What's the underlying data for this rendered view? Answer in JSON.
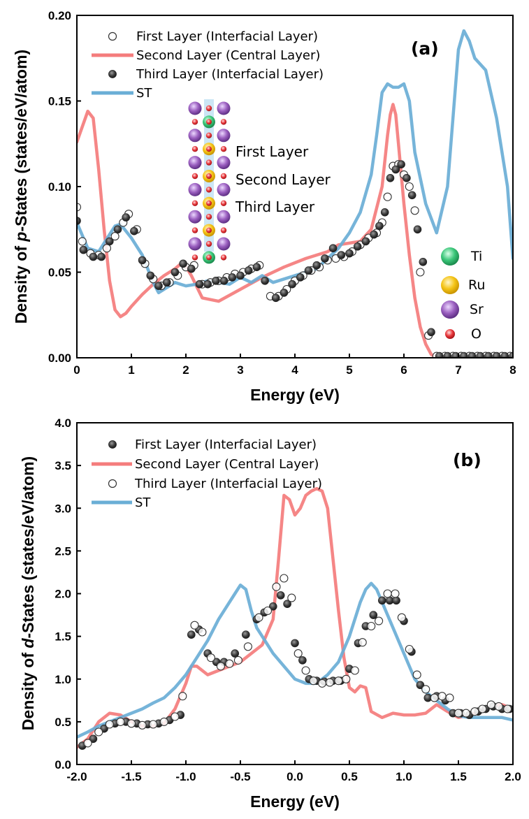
{
  "colors": {
    "red": "#f47c7c",
    "blue": "#6aaed6",
    "dark_marker": "#3c3c3c",
    "ti": "#3cc77a",
    "ru": "#f5c518",
    "sr": "#9b5fc0",
    "o": "#e8383c"
  },
  "chart_data": [
    {
      "type": "line",
      "panel_label": "(a)",
      "xlabel": "Energy (eV)",
      "ylabel_prefix": "Density of ",
      "ylabel_italic": "p",
      "ylabel_suffix": "-States (states/eV/atom)",
      "xlim": [
        0,
        8
      ],
      "ylim": [
        0,
        0.2
      ],
      "xticks": [
        0,
        1,
        2,
        3,
        4,
        5,
        6,
        7,
        8
      ],
      "xtick_labels": [
        "0",
        "1",
        "2",
        "3",
        "4",
        "5",
        "6",
        "7",
        "8"
      ],
      "yticks": [
        0,
        0.05,
        0.1,
        0.15,
        0.2
      ],
      "ytick_labels": [
        "0.00",
        "0.05",
        "0.10",
        "0.15",
        "0.20"
      ],
      "legend": [
        {
          "label": "First      Layer (Interfacial Layer)",
          "style": "open-circle"
        },
        {
          "label": "Second Layer (Central     Layer)",
          "style": "red-line"
        },
        {
          "label": "Third     Layer (Interfacial Layer)",
          "style": "dark-circle"
        },
        {
          "label": "ST",
          "style": "blue-line"
        }
      ],
      "series": [
        {
          "name": "Second Layer (Central Layer)",
          "style": "red-line",
          "x": [
            0,
            0.1,
            0.2,
            0.3,
            0.4,
            0.5,
            0.6,
            0.7,
            0.8,
            0.9,
            1.0,
            1.2,
            1.4,
            1.6,
            1.8,
            1.95,
            2.1,
            2.3,
            2.6,
            3.0,
            3.4,
            3.8,
            4.2,
            4.6,
            4.8,
            5.0,
            5.2,
            5.4,
            5.6,
            5.7,
            5.75,
            5.8,
            5.85,
            5.9,
            6.0,
            6.1,
            6.2,
            6.3,
            6.4,
            6.5,
            6.6,
            7.0,
            7.5,
            8.0
          ],
          "y": [
            0.126,
            0.135,
            0.144,
            0.14,
            0.11,
            0.075,
            0.045,
            0.028,
            0.024,
            0.026,
            0.03,
            0.037,
            0.043,
            0.048,
            0.052,
            0.056,
            0.048,
            0.035,
            0.033,
            0.04,
            0.047,
            0.053,
            0.058,
            0.062,
            0.066,
            0.067,
            0.068,
            0.075,
            0.1,
            0.13,
            0.142,
            0.148,
            0.142,
            0.125,
            0.09,
            0.06,
            0.035,
            0.018,
            0.008,
            0.002,
            0,
            0,
            0,
            0
          ]
        },
        {
          "name": "ST",
          "style": "blue-line",
          "x": [
            0,
            0.2,
            0.4,
            0.6,
            0.7,
            0.8,
            1.0,
            1.2,
            1.4,
            1.5,
            1.6,
            1.8,
            2.0,
            2.2,
            2.4,
            2.6,
            2.8,
            3.0,
            3.2,
            3.4,
            3.6,
            3.8,
            4.0,
            4.2,
            4.4,
            4.6,
            4.8,
            5.0,
            5.2,
            5.4,
            5.5,
            5.6,
            5.7,
            5.8,
            5.9,
            6.0,
            6.1,
            6.2,
            6.4,
            6.6,
            6.8,
            6.9,
            7.0,
            7.1,
            7.2,
            7.3,
            7.5,
            7.7,
            7.9,
            8.0
          ],
          "y": [
            0.079,
            0.064,
            0.062,
            0.072,
            0.077,
            0.078,
            0.07,
            0.06,
            0.044,
            0.038,
            0.04,
            0.044,
            0.042,
            0.043,
            0.045,
            0.044,
            0.043,
            0.047,
            0.044,
            0.048,
            0.044,
            0.046,
            0.048,
            0.05,
            0.052,
            0.058,
            0.064,
            0.073,
            0.085,
            0.107,
            0.13,
            0.155,
            0.16,
            0.158,
            0.158,
            0.16,
            0.15,
            0.12,
            0.09,
            0.073,
            0.1,
            0.14,
            0.18,
            0.191,
            0.185,
            0.175,
            0.168,
            0.14,
            0.1,
            0.058
          ]
        },
        {
          "name": "First Layer (Interfacial Layer)",
          "style": "open-circle",
          "x": [
            0,
            0.1,
            0.25,
            0.4,
            0.55,
            0.7,
            0.85,
            0.95,
            1.1,
            1.25,
            1.4,
            1.55,
            1.7,
            1.85,
            2.0,
            2.15,
            2.3,
            2.45,
            2.6,
            2.75,
            2.9,
            3.05,
            3.2,
            3.35,
            3.55,
            3.7,
            3.85,
            4.0,
            4.15,
            4.3,
            4.45,
            4.6,
            4.75,
            4.9,
            5.05,
            5.2,
            5.35,
            5.5,
            5.6,
            5.7,
            5.8,
            5.9,
            6.0,
            6.1,
            6.2,
            6.3,
            6.45,
            6.6,
            6.75,
            6.9,
            7.05,
            7.2,
            7.35,
            7.5,
            7.65,
            7.8,
            7.95
          ],
          "y": [
            0.088,
            0.068,
            0.061,
            0.06,
            0.064,
            0.071,
            0.079,
            0.084,
            0.075,
            0.055,
            0.046,
            0.042,
            0.044,
            0.048,
            0.053,
            0.054,
            0.043,
            0.044,
            0.045,
            0.047,
            0.049,
            0.05,
            0.052,
            0.054,
            0.036,
            0.036,
            0.04,
            0.045,
            0.048,
            0.051,
            0.053,
            0.057,
            0.058,
            0.059,
            0.062,
            0.066,
            0.07,
            0.073,
            0.079,
            0.094,
            0.112,
            0.113,
            0.107,
            0.1,
            0.086,
            0.05,
            0.013,
            0.001,
            0.001,
            0.001,
            0.001,
            0.001,
            0.001,
            0.001,
            0.001,
            0.001,
            0.001
          ]
        },
        {
          "name": "Third Layer (Interfacial Layer)",
          "style": "dark-circle",
          "x": [
            0,
            0.12,
            0.3,
            0.45,
            0.6,
            0.75,
            0.9,
            1.05,
            1.2,
            1.35,
            1.5,
            1.65,
            1.8,
            1.95,
            2.1,
            2.25,
            2.4,
            2.55,
            2.7,
            2.85,
            3.0,
            3.15,
            3.3,
            3.45,
            3.65,
            3.8,
            3.95,
            4.1,
            4.25,
            4.4,
            4.55,
            4.7,
            4.85,
            5.0,
            5.15,
            5.3,
            5.45,
            5.55,
            5.65,
            5.75,
            5.85,
            5.95,
            6.05,
            6.15,
            6.25,
            6.35,
            6.5,
            6.65,
            6.8,
            6.95,
            7.1,
            7.25,
            7.4,
            7.55,
            7.7,
            7.85,
            8.0
          ],
          "y": [
            0.08,
            0.063,
            0.059,
            0.059,
            0.068,
            0.075,
            0.082,
            0.074,
            0.057,
            0.048,
            0.042,
            0.044,
            0.05,
            0.055,
            0.052,
            0.043,
            0.043,
            0.045,
            0.045,
            0.047,
            0.048,
            0.051,
            0.053,
            0.045,
            0.035,
            0.038,
            0.043,
            0.047,
            0.051,
            0.054,
            0.058,
            0.064,
            0.06,
            0.061,
            0.065,
            0.068,
            0.072,
            0.077,
            0.085,
            0.105,
            0.11,
            0.113,
            0.105,
            0.095,
            0.075,
            0.056,
            0.015,
            0.001,
            0.001,
            0.001,
            0.001,
            0.001,
            0.001,
            0.001,
            0.001,
            0.001,
            0.001
          ]
        }
      ],
      "inset_structure": {
        "layer_labels": [
          "First      Layer",
          "Second Layer",
          "Third     Layer"
        ],
        "atom_legend": [
          "Ti",
          "Ru",
          "Sr",
          "O"
        ]
      }
    },
    {
      "type": "line",
      "panel_label": "(b)",
      "xlabel": "Energy (eV)",
      "ylabel_prefix": "Density of ",
      "ylabel_italic": "d",
      "ylabel_suffix": "-States (states/eV/atom)",
      "xlim": [
        -2,
        2
      ],
      "ylim": [
        0,
        4
      ],
      "xticks": [
        -2,
        -1.5,
        -1,
        -0.5,
        0,
        0.5,
        1,
        1.5,
        2
      ],
      "xtick_labels": [
        "-2.0",
        "-1.5",
        "-1.0",
        "-0.5",
        "0.0",
        "0.5",
        "1.0",
        "1.5",
        "2.0"
      ],
      "yticks": [
        0,
        0.5,
        1,
        1.5,
        2,
        2.5,
        3,
        3.5,
        4
      ],
      "ytick_labels": [
        "0.0",
        "0.5",
        "1.0",
        "1.5",
        "2.0",
        "2.5",
        "3.0",
        "3.5",
        "4.0"
      ],
      "legend": [
        {
          "label": "First      Layer (Interfacial Layer)",
          "style": "dark-circle"
        },
        {
          "label": "Second Layer (Central     Layer)",
          "style": "red-line"
        },
        {
          "label": "Third     Layer (Interfacial Layer)",
          "style": "open-circle"
        },
        {
          "label": "ST",
          "style": "blue-line"
        }
      ],
      "series": [
        {
          "name": "Second Layer (Central Layer)",
          "style": "red-line",
          "x": [
            -2.0,
            -1.9,
            -1.8,
            -1.7,
            -1.6,
            -1.5,
            -1.4,
            -1.3,
            -1.2,
            -1.1,
            -1.0,
            -0.95,
            -0.9,
            -0.8,
            -0.7,
            -0.6,
            -0.5,
            -0.4,
            -0.3,
            -0.2,
            -0.15,
            -0.1,
            -0.05,
            0.0,
            0.05,
            0.1,
            0.15,
            0.2,
            0.25,
            0.3,
            0.35,
            0.4,
            0.45,
            0.5,
            0.55,
            0.6,
            0.65,
            0.7,
            0.8,
            0.9,
            1.0,
            1.1,
            1.2,
            1.3,
            1.4,
            1.5,
            1.6,
            1.7,
            1.8,
            1.9,
            2.0
          ],
          "y": [
            0.2,
            0.3,
            0.5,
            0.6,
            0.58,
            0.5,
            0.45,
            0.45,
            0.48,
            0.65,
            0.95,
            1.15,
            1.15,
            1.05,
            1.1,
            1.15,
            1.2,
            1.3,
            1.4,
            1.7,
            2.4,
            3.15,
            3.1,
            2.92,
            3.0,
            3.15,
            3.2,
            3.23,
            3.2,
            3.0,
            2.4,
            1.8,
            1.25,
            0.9,
            0.85,
            0.92,
            0.9,
            0.62,
            0.55,
            0.6,
            0.58,
            0.58,
            0.6,
            0.7,
            0.62,
            0.55,
            0.58,
            0.62,
            0.68,
            0.7,
            0.65
          ]
        },
        {
          "name": "ST",
          "style": "blue-line",
          "x": [
            -2.0,
            -1.9,
            -1.8,
            -1.7,
            -1.6,
            -1.5,
            -1.4,
            -1.3,
            -1.2,
            -1.1,
            -1.0,
            -0.9,
            -0.8,
            -0.7,
            -0.6,
            -0.55,
            -0.5,
            -0.45,
            -0.4,
            -0.35,
            -0.3,
            -0.2,
            -0.1,
            0.0,
            0.1,
            0.2,
            0.3,
            0.4,
            0.5,
            0.6,
            0.65,
            0.7,
            0.75,
            0.8,
            0.9,
            1.0,
            1.1,
            1.2,
            1.3,
            1.4,
            1.5,
            1.6,
            1.7,
            1.8,
            1.9,
            2.0
          ],
          "y": [
            0.32,
            0.38,
            0.45,
            0.5,
            0.55,
            0.6,
            0.65,
            0.72,
            0.78,
            0.9,
            1.05,
            1.25,
            1.45,
            1.7,
            1.9,
            2.0,
            2.1,
            2.05,
            1.8,
            1.6,
            1.5,
            1.3,
            1.15,
            1.0,
            0.95,
            0.95,
            1.05,
            1.2,
            1.5,
            1.9,
            2.05,
            2.12,
            2.05,
            1.9,
            1.6,
            1.3,
            1.0,
            0.85,
            0.75,
            0.65,
            0.57,
            0.55,
            0.55,
            0.55,
            0.55,
            0.52
          ]
        },
        {
          "name": "First Layer (Interfacial Layer)",
          "style": "dark-circle",
          "x": [
            -1.95,
            -1.85,
            -1.75,
            -1.65,
            -1.55,
            -1.45,
            -1.35,
            -1.25,
            -1.15,
            -1.05,
            -0.95,
            -0.88,
            -0.8,
            -0.72,
            -0.65,
            -0.55,
            -0.45,
            -0.35,
            -0.28,
            -0.2,
            -0.13,
            -0.07,
            0.0,
            0.07,
            0.13,
            0.2,
            0.27,
            0.35,
            0.42,
            0.5,
            0.58,
            0.65,
            0.72,
            0.8,
            0.87,
            0.93,
            1.0,
            1.07,
            1.15,
            1.22,
            1.3,
            1.38,
            1.45,
            1.52,
            1.6,
            1.68,
            1.75,
            1.82,
            1.9,
            1.97
          ],
          "y": [
            0.22,
            0.3,
            0.42,
            0.48,
            0.5,
            0.48,
            0.47,
            0.48,
            0.52,
            0.58,
            1.52,
            1.58,
            1.3,
            1.2,
            1.2,
            1.3,
            1.52,
            1.7,
            1.78,
            1.85,
            1.98,
            1.88,
            1.42,
            1.22,
            1.0,
            0.98,
            0.97,
            0.98,
            0.98,
            1.12,
            1.42,
            1.62,
            1.75,
            1.92,
            1.92,
            1.92,
            1.68,
            1.32,
            0.93,
            0.78,
            0.8,
            0.75,
            0.6,
            0.6,
            0.58,
            0.62,
            0.65,
            0.68,
            0.65,
            0.65
          ]
        },
        {
          "name": "Third Layer (Interfacial Layer)",
          "style": "open-circle",
          "x": [
            -1.9,
            -1.8,
            -1.7,
            -1.6,
            -1.5,
            -1.4,
            -1.3,
            -1.2,
            -1.1,
            -1.03,
            -0.92,
            -0.85,
            -0.77,
            -0.68,
            -0.6,
            -0.52,
            -0.43,
            -0.33,
            -0.25,
            -0.17,
            -0.1,
            -0.03,
            0.03,
            0.1,
            0.17,
            0.25,
            0.32,
            0.4,
            0.47,
            0.55,
            0.62,
            0.7,
            0.77,
            0.85,
            0.92,
            0.98,
            1.05,
            1.12,
            1.2,
            1.28,
            1.35,
            1.42,
            1.5,
            1.57,
            1.65,
            1.72,
            1.8,
            1.87,
            1.95
          ],
          "y": [
            0.25,
            0.38,
            0.47,
            0.5,
            0.48,
            0.46,
            0.47,
            0.5,
            0.56,
            0.8,
            1.63,
            1.55,
            1.25,
            1.15,
            1.18,
            1.22,
            1.38,
            1.72,
            1.8,
            2.08,
            2.18,
            1.95,
            1.3,
            1.1,
            0.98,
            0.95,
            0.96,
            0.98,
            1.0,
            1.1,
            1.43,
            1.62,
            1.68,
            2.0,
            2.0,
            1.72,
            1.35,
            1.05,
            0.88,
            0.78,
            0.8,
            0.78,
            0.6,
            0.6,
            0.62,
            0.65,
            0.7,
            0.68,
            0.65
          ]
        }
      ]
    }
  ]
}
